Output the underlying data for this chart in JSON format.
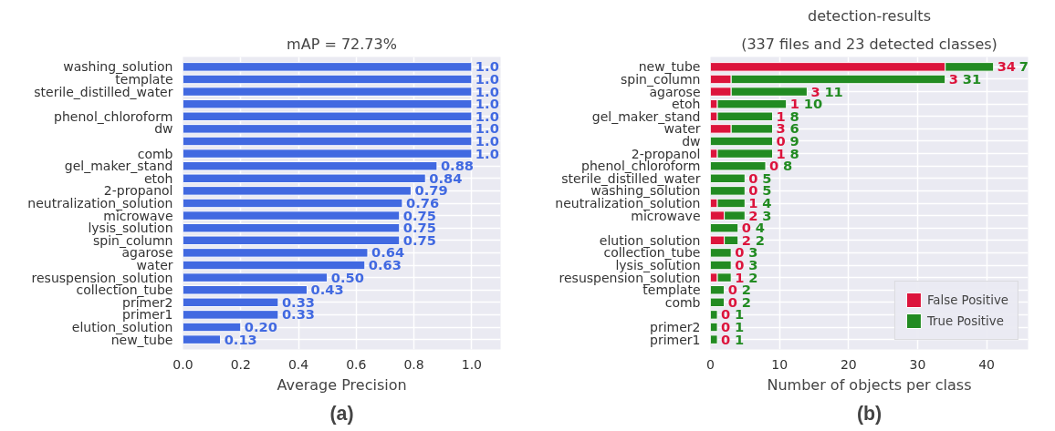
{
  "chart_data": [
    {
      "type": "bar",
      "orientation": "horizontal",
      "title": "mAP = 72.73%",
      "xlabel": "Average Precision",
      "categories": [
        "washing_solution",
        "template",
        "sterile_distilled_water",
        null,
        "phenol_chloroform",
        "dw",
        null,
        "comb",
        "gel_maker_stand",
        "etoh",
        "2-propanol",
        "neutralization_solution",
        "microwave",
        "lysis_solution",
        "spin_column",
        "agarose",
        "water",
        "resuspension_solution",
        "collection_tube",
        "primer2",
        "primer1",
        "elution_solution",
        "new_tube"
      ],
      "series": [
        {
          "color": "#4169e1",
          "values": [
            1.0,
            1.0,
            1.0,
            1.0,
            1.0,
            1.0,
            1.0,
            1.0,
            0.88,
            0.84,
            0.79,
            0.76,
            0.75,
            0.75,
            0.75,
            0.64,
            0.63,
            0.5,
            0.43,
            0.33,
            0.33,
            0.2,
            0.13
          ],
          "value_labels": [
            "1.0",
            "1.0",
            "1.0",
            "1.0",
            "1.0",
            "1.0",
            "1.0",
            "1.0",
            "0.88",
            "0.84",
            "0.79",
            "0.76",
            "0.75",
            "0.75",
            "0.75",
            "0.64",
            "0.63",
            "0.50",
            "0.43",
            "0.33",
            "0.33",
            "0.20",
            "0.13"
          ]
        }
      ],
      "xlim": [
        0,
        1.1
      ],
      "xticks": [
        {
          "value": 0,
          "label": "0.0"
        },
        {
          "value": 0.2,
          "label": "0.2"
        },
        {
          "value": 0.4,
          "label": "0.4"
        },
        {
          "value": 0.6,
          "label": "0.6"
        },
        {
          "value": 0.8,
          "label": "0.8"
        },
        {
          "value": 1,
          "label": "1.0"
        }
      ],
      "grid": true,
      "annotations": [
        "(a)"
      ]
    },
    {
      "type": "bar",
      "orientation": "horizontal",
      "stacked": true,
      "title": "detection-results",
      "subtitle": "(337 files and 23 detected classes)",
      "xlabel": "Number of objects per class",
      "categories": [
        "new_tube",
        "spin_column",
        "agarose",
        "etoh",
        "gel_maker_stand",
        "water",
        "dw",
        "2-propanol",
        "phenol_chloroform",
        "sterile_distilled_water",
        "washing_solution",
        "neutralization_solution",
        "microwave",
        null,
        "elution_solution",
        "collection_tube",
        "lysis_solution",
        "resuspension_solution",
        "template",
        "comb",
        null,
        "primer2",
        "primer1"
      ],
      "series": [
        {
          "name": "False Positive",
          "color": "#dc143c",
          "values": [
            34,
            3,
            3,
            1,
            1,
            3,
            0,
            1,
            0,
            0,
            0,
            1,
            2,
            0,
            2,
            0,
            0,
            1,
            0,
            0,
            0,
            0,
            0
          ]
        },
        {
          "name": "True Positive",
          "color": "#228b22",
          "values": [
            7,
            31,
            11,
            10,
            8,
            6,
            9,
            8,
            8,
            5,
            5,
            4,
            3,
            4,
            2,
            3,
            3,
            2,
            2,
            2,
            1,
            1,
            1
          ]
        }
      ],
      "xlim": [
        0,
        46
      ],
      "xticks": [
        0,
        10,
        20,
        30,
        40
      ],
      "grid": true,
      "legend": "bottom right",
      "annotations": [
        "(b)",
        {
          "text": "34",
          "x": 41,
          "y": "new_tube"
        },
        {
          "text": "7",
          "x": 41,
          "y": "new_tube"
        },
        {
          "text": "3",
          "x": 34,
          "y": "spin_column"
        },
        {
          "text": "31",
          "x": 34,
          "y": "spin_column"
        },
        {
          "text": "3",
          "x": 14,
          "y": "agarose"
        },
        {
          "text": "11",
          "x": 14,
          "y": "agarose"
        },
        {
          "text": "1",
          "x": 11,
          "y": "etoh"
        },
        {
          "text": "10",
          "x": 11,
          "y": "etoh"
        },
        {
          "text": "1",
          "x": 9,
          "y": "gel_maker_stand"
        },
        {
          "text": "8",
          "x": 9,
          "y": "gel_maker_stand"
        },
        {
          "text": "3",
          "x": 9,
          "y": "water"
        },
        {
          "text": "6",
          "x": 9,
          "y": "water"
        },
        {
          "text": "0",
          "x": 9,
          "y": "dw"
        },
        {
          "text": "9",
          "x": 9,
          "y": "dw"
        },
        {
          "text": "1",
          "x": 9,
          "y": "2-propanol"
        },
        {
          "text": "8",
          "x": 9,
          "y": "2-propanol"
        },
        {
          "text": "0",
          "x": 8,
          "y": "phenol_chloroform"
        },
        {
          "text": "8",
          "x": 8,
          "y": "phenol_chloroform"
        },
        {
          "text": "0",
          "x": 5,
          "y": "sterile_distilled_water"
        },
        {
          "text": "5",
          "x": 5,
          "y": "sterile_distilled_water"
        },
        {
          "text": "0",
          "x": 5,
          "y": "washing_solution"
        },
        {
          "text": "5",
          "x": 5,
          "y": "washing_solution"
        },
        {
          "text": "1",
          "x": 5,
          "y": "neutralization_solution"
        },
        {
          "text": "4",
          "x": 5,
          "y": "neutralization_solution"
        },
        {
          "text": "2",
          "x": 5,
          "y": "microwave"
        },
        {
          "text": "3",
          "x": 5,
          "y": "microwave"
        },
        "0",
        "4",
        {
          "text": "2",
          "x": 4,
          "y": "elution_solution"
        },
        {
          "text": "2",
          "x": 4,
          "y": "elution_solution"
        },
        {
          "text": "0",
          "x": 3,
          "y": "collection_tube"
        },
        {
          "text": "3",
          "x": 3,
          "y": "collection_tube"
        },
        {
          "text": "0",
          "x": 3,
          "y": "lysis_solution"
        },
        {
          "text": "3",
          "x": 3,
          "y": "lysis_solution"
        },
        {
          "text": "1",
          "x": 3,
          "y": "resuspension_solution"
        },
        {
          "text": "2",
          "x": 3,
          "y": "resuspension_solution"
        },
        {
          "text": "0",
          "x": 2,
          "y": "template"
        },
        {
          "text": "2",
          "x": 2,
          "y": "template"
        },
        {
          "text": "0",
          "x": 2,
          "y": "comb"
        },
        {
          "text": "2",
          "x": 2,
          "y": "comb"
        },
        "0",
        "1",
        {
          "text": "0",
          "x": 1,
          "y": "primer2"
        },
        {
          "text": "1",
          "x": 1,
          "y": "primer2"
        },
        {
          "text": "0",
          "x": 1,
          "y": "primer1"
        },
        {
          "text": "1",
          "x": 1,
          "y": "primer1"
        }
      ]
    }
  ]
}
